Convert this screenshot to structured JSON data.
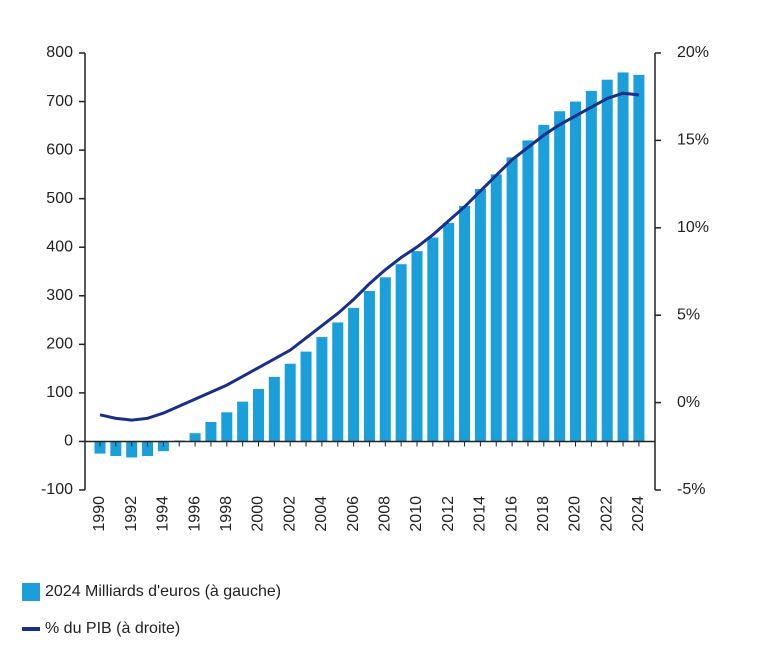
{
  "chart_data": {
    "type": "bar+line",
    "categories": [
      "1990",
      null,
      "1992",
      null,
      "1994",
      null,
      "1996",
      null,
      "1998",
      null,
      "2000",
      null,
      "2002",
      null,
      "2004",
      null,
      "2006",
      null,
      "2008",
      null,
      "2010",
      null,
      "2012",
      null,
      "2014",
      null,
      "2016",
      null,
      "2018",
      null,
      "2020",
      null,
      "2022",
      null,
      "2024"
    ],
    "series": [
      {
        "name": "2024 Milliards d'euros (à gauche)",
        "color": "#1a9fdb",
        "type": "bar",
        "values": [
          -25,
          -30,
          -33,
          -30,
          -20,
          2,
          17,
          40,
          60,
          82,
          108,
          133,
          160,
          185,
          215,
          245,
          275,
          310,
          338,
          365,
          392,
          420,
          450,
          485,
          520,
          550,
          585,
          620,
          652,
          680,
          700,
          722,
          745,
          760,
          755
        ]
      },
      {
        "name": "% du PIB (à droite)",
        "color": "#1a2f8a",
        "type": "line",
        "axis": "y2",
        "values": [
          -0.7,
          -0.9,
          -1.0,
          -0.9,
          -0.6,
          -0.2,
          0.2,
          0.6,
          1.0,
          1.5,
          2.0,
          2.5,
          3.0,
          3.7,
          4.4,
          5.1,
          5.9,
          6.8,
          7.6,
          8.3,
          8.9,
          9.6,
          10.4,
          11.2,
          12.1,
          13.0,
          13.9,
          14.6,
          15.3,
          15.9,
          16.4,
          16.9,
          17.4,
          17.7,
          17.6
        ]
      }
    ],
    "ylim": [
      -100,
      800
    ],
    "yticks": [
      -100,
      0,
      100,
      200,
      300,
      400,
      500,
      600,
      700,
      800
    ],
    "y2lim": [
      -5,
      20
    ],
    "y2ticks": [
      {
        "value": -5,
        "label": "-5%"
      },
      {
        "value": 0,
        "label": "0%"
      },
      {
        "value": 5,
        "label": "5%"
      },
      {
        "value": 10,
        "label": "10%"
      },
      {
        "value": 15,
        "label": "15%"
      },
      {
        "value": 20,
        "label": "20%"
      }
    ]
  }
}
